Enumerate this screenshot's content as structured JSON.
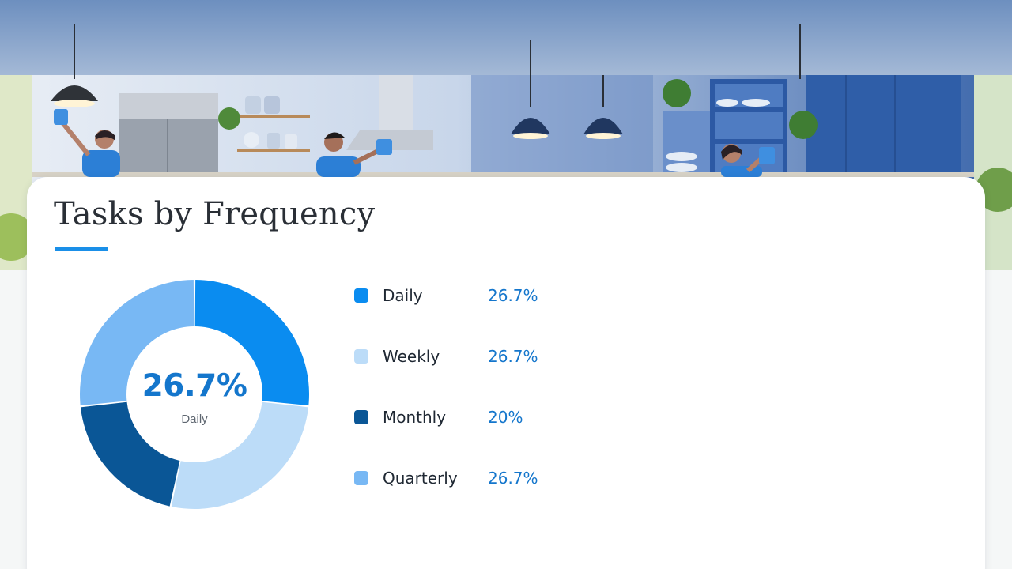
{
  "page": {
    "title": "Tasks by Frequency",
    "center_value": "26.7%",
    "center_label": "Daily"
  },
  "colors": {
    "accent": "#1a8fe8",
    "value_text": "#1476cc",
    "daily": "#0a8cf0",
    "weekly": "#bcdcf8",
    "monthly": "#0a5696",
    "quarterly": "#78b8f4"
  },
  "chart_data": {
    "type": "pie",
    "variant": "donut",
    "title": "Tasks by Frequency",
    "categories": [
      "Daily",
      "Weekly",
      "Monthly",
      "Quarterly"
    ],
    "values": [
      26.7,
      26.7,
      20,
      26.7
    ],
    "value_labels": [
      "26.7%",
      "26.7%",
      "20%",
      "26.7%"
    ],
    "legend_position": "right"
  },
  "legend": [
    {
      "label": "Daily",
      "value": "26.7%",
      "color": "#0a8cf0"
    },
    {
      "label": "Weekly",
      "value": "26.7%",
      "color": "#bcdcf8"
    },
    {
      "label": "Monthly",
      "value": "20%",
      "color": "#0a5696"
    },
    {
      "label": "Quarterly",
      "value": "26.7%",
      "color": "#78b8f4"
    }
  ]
}
